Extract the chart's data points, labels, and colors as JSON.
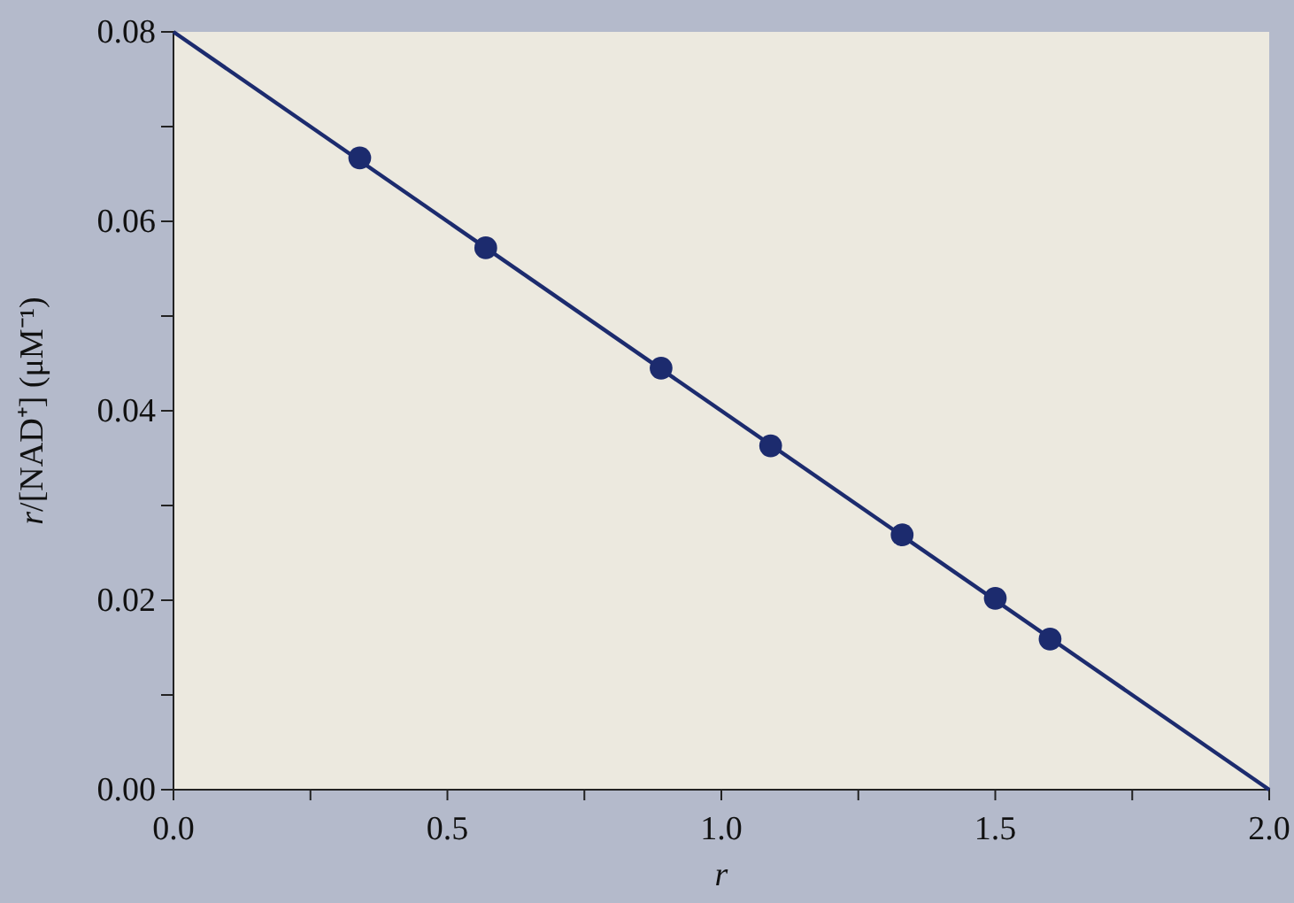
{
  "chart_data": {
    "type": "scatter",
    "xlabel": "r",
    "ylabel": "r/[NAD⁺] (μM⁻¹)",
    "xlim": [
      0,
      2.0
    ],
    "ylim": [
      0,
      0.08
    ],
    "xticks": [
      {
        "value": 0,
        "label": "0.0"
      },
      {
        "value": 0.25,
        "label": null
      },
      {
        "value": 0.5,
        "label": "0.5"
      },
      {
        "value": 0.75,
        "label": null
      },
      {
        "value": 1.0,
        "label": "1.0"
      },
      {
        "value": 1.25,
        "label": null
      },
      {
        "value": 1.5,
        "label": "1.5"
      },
      {
        "value": 1.75,
        "label": null
      },
      {
        "value": 2.0,
        "label": "2.0"
      }
    ],
    "yticks": [
      {
        "value": 0,
        "label": "0.00"
      },
      {
        "value": 0.01,
        "label": null
      },
      {
        "value": 0.02,
        "label": "0.02"
      },
      {
        "value": 0.03,
        "label": null
      },
      {
        "value": 0.04,
        "label": "0.04"
      },
      {
        "value": 0.05,
        "label": null
      },
      {
        "value": 0.06,
        "label": "0.06"
      },
      {
        "value": 0.07,
        "label": null
      },
      {
        "value": 0.08,
        "label": "0.08"
      }
    ],
    "marker": "circle",
    "grid": false,
    "series": [
      {
        "type": "line",
        "marker": "none",
        "color": "#1c2b6e",
        "x": [
          0,
          2.0
        ],
        "values": [
          0.08,
          0
        ]
      },
      {
        "color": "#1c2b6e",
        "x": [
          0.34,
          0.57,
          0.89,
          1.09,
          1.33,
          1.5,
          1.6
        ],
        "values": [
          0.0667,
          0.0572,
          0.0445,
          0.0363,
          0.0269,
          0.0202,
          0.0159
        ]
      }
    ]
  }
}
